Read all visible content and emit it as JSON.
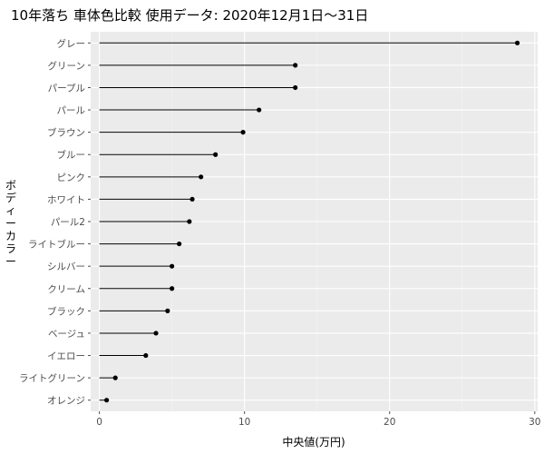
{
  "chart_data": {
    "type": "lollipop",
    "title": "10年落ち 車体色比較 使用データ: 2020年12月1日～31日",
    "xlabel": "中央値(万円)",
    "ylabel": "ボディーカラー",
    "xlim": [
      -0.6,
      30.2
    ],
    "xticks": [
      0,
      10,
      20,
      30
    ],
    "grid": true,
    "categories": [
      "グレー",
      "グリーン",
      "パープル",
      "パール",
      "ブラウン",
      "ブルー",
      "ピンク",
      "ホワイト",
      "パール2",
      "ライトブルー",
      "シルバー",
      "クリーム",
      "ブラック",
      "ベージュ",
      "イエロー",
      "ライトグリーン",
      "オレンジ"
    ],
    "values": [
      28.8,
      13.5,
      13.5,
      11.0,
      9.9,
      8.0,
      7.0,
      6.4,
      6.2,
      5.5,
      5.0,
      5.0,
      4.7,
      3.9,
      3.2,
      1.1,
      0.5
    ]
  },
  "colors": {
    "panel": "#ebebeb",
    "grid_major": "#ffffff",
    "grid_minor": "#f4f4f4",
    "stick": "#000000",
    "point": "#000000",
    "tick": "#4d4d4d"
  }
}
